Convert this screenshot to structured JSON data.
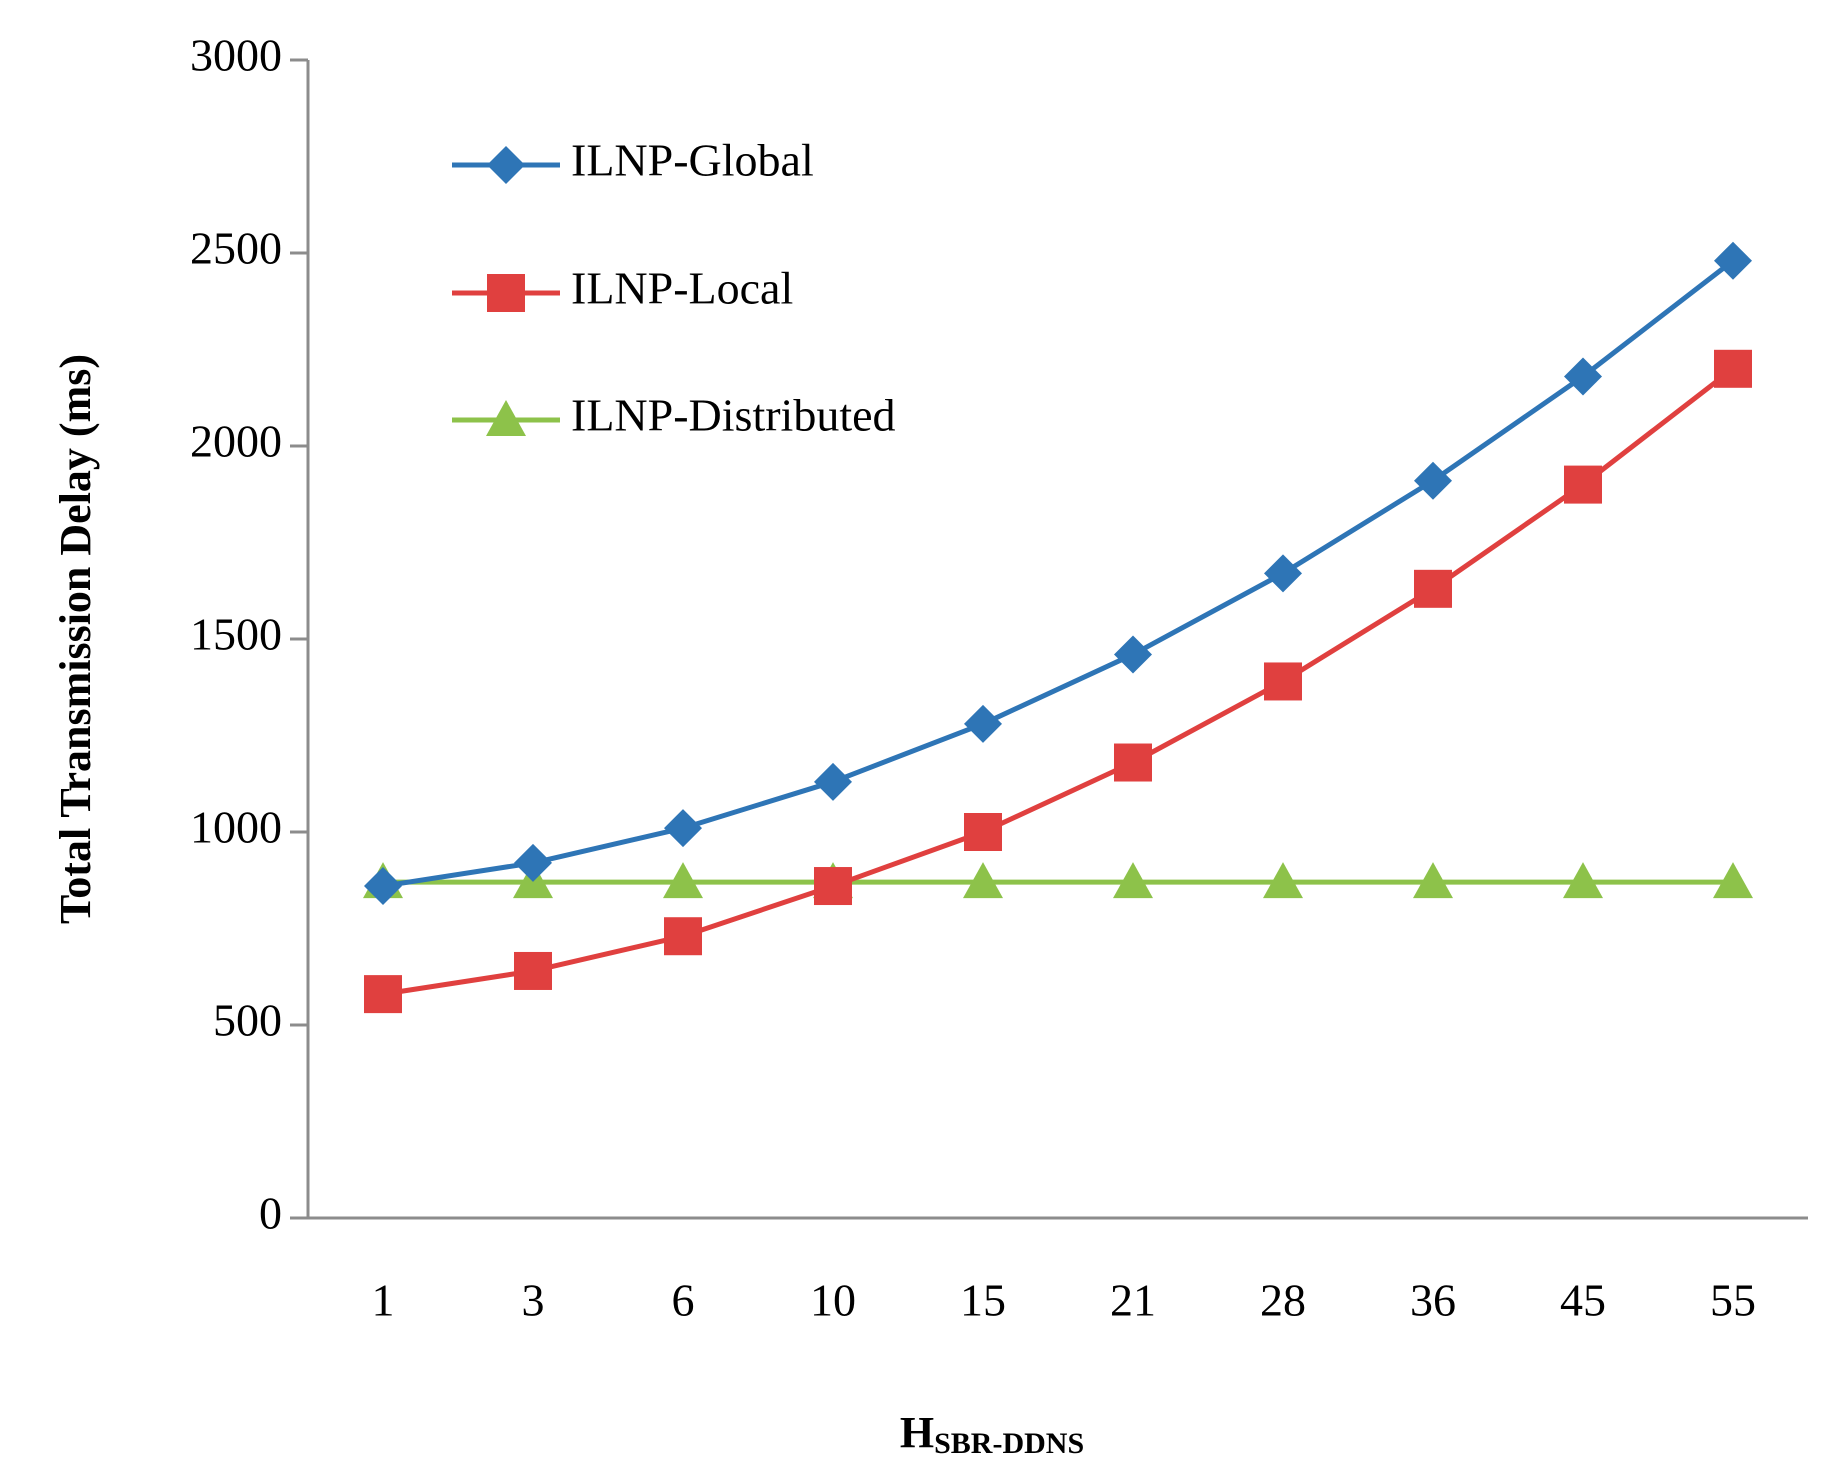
{
  "chart_data": {
    "type": "line",
    "title": "",
    "xlabel": "H",
    "xlabel_subscript": "SBR-DDNS",
    "ylabel": "Total Transmission Delay (ms)",
    "categories": [
      "1",
      "3",
      "6",
      "10",
      "15",
      "21",
      "28",
      "36",
      "45",
      "55"
    ],
    "ylim": [
      0,
      3000
    ],
    "yticks": [
      "0",
      "500",
      "1000",
      "1500",
      "2000",
      "2500",
      "3000"
    ],
    "grid": false,
    "legend_position": "top-left",
    "series": [
      {
        "name": "ILNP-Global",
        "color": "#2E75B6",
        "marker": "diamond",
        "values": [
          860,
          920,
          1010,
          1130,
          1280,
          1460,
          1670,
          1910,
          2180,
          2480
        ]
      },
      {
        "name": "ILNP-Local",
        "color": "#E0403F",
        "marker": "square",
        "values": [
          580,
          640,
          730,
          860,
          1000,
          1180,
          1390,
          1630,
          1900,
          2200
        ]
      },
      {
        "name": "ILNP-Distributed",
        "color": "#8DC24A",
        "marker": "triangle",
        "values": [
          870,
          870,
          870,
          870,
          870,
          870,
          870,
          870,
          870,
          870
        ]
      }
    ]
  }
}
